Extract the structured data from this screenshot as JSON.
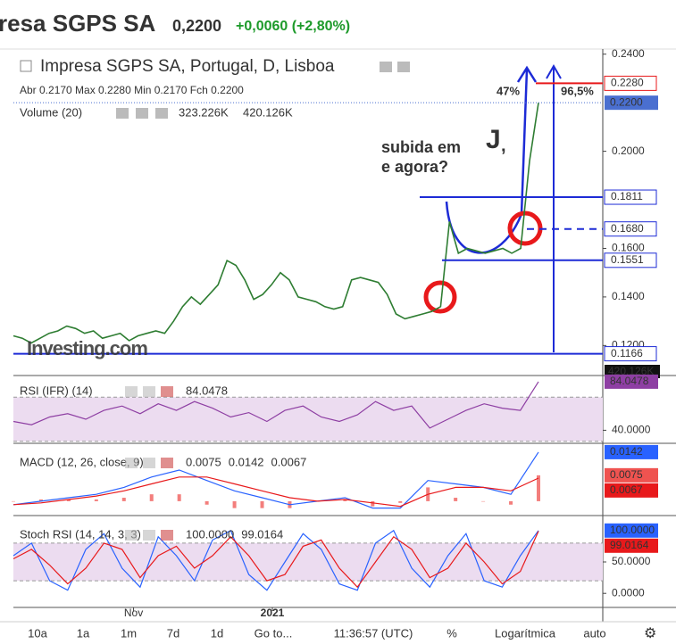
{
  "header": {
    "name": "resa SGPS SA",
    "price": "0,2200",
    "change": "+0,0060 (+2,80%)"
  },
  "chart_data": [
    {
      "type": "line",
      "title": "Impresa SGPS SA, Portugal, D, Lisboa",
      "ohlc": "Abr 0.2170 Max 0.2280 Min 0.2170 Fch 0.2200",
      "volume": {
        "label": "Volume (20)",
        "values": [
          "323.226K",
          "420.126K"
        ],
        "axis_label": "420.126K"
      },
      "watermark": "Investing.com",
      "color": "#2e7d32",
      "values": [
        0.124,
        0.123,
        0.121,
        0.123,
        0.125,
        0.126,
        0.128,
        0.127,
        0.125,
        0.126,
        0.123,
        0.124,
        0.125,
        0.122,
        0.124,
        0.125,
        0.126,
        0.125,
        0.13,
        0.136,
        0.14,
        0.137,
        0.141,
        0.145,
        0.155,
        0.153,
        0.147,
        0.139,
        0.141,
        0.145,
        0.15,
        0.147,
        0.14,
        0.139,
        0.138,
        0.136,
        0.135,
        0.136,
        0.147,
        0.148,
        0.147,
        0.146,
        0.141,
        0.133,
        0.131,
        0.132,
        0.133,
        0.134,
        0.136,
        0.171,
        0.158,
        0.16,
        0.159,
        0.158,
        0.159,
        0.16,
        0.158,
        0.16,
        0.196,
        0.22
      ],
      "value_labels": [
        null,
        null,
        null,
        null,
        null,
        null,
        null,
        null,
        null,
        null,
        null,
        null,
        null,
        null,
        null,
        null,
        null,
        null,
        null,
        null,
        null,
        null,
        null,
        null,
        null,
        null,
        null,
        null,
        null,
        null,
        null,
        null,
        null,
        null,
        null,
        null,
        null,
        null,
        null,
        null,
        null,
        null,
        null,
        null,
        null,
        null,
        null,
        null,
        null,
        null,
        null,
        null,
        null,
        null,
        null,
        null,
        null,
        null,
        null,
        "0.2200"
      ],
      "box_color": "#4a6fd0",
      "ylim": [
        0.108,
        0.241
      ],
      "yticks": [
        {
          "value": 0.24,
          "label": "0.2400"
        },
        {
          "value": 0.2,
          "label": "0.2000"
        },
        {
          "value": 0.16,
          "label": "0.1600"
        },
        {
          "value": 0.14,
          "label": "0.1400"
        },
        {
          "value": 0.12,
          "label": "0.1200"
        }
      ],
      "xticks": [
        {
          "value": 13.5,
          "label": "Nov"
        },
        {
          "value": 29.1,
          "label": "2021"
        }
      ],
      "levels": [
        {
          "value": 0.228,
          "label": "0.2280",
          "color": "#e8191b"
        },
        {
          "value": 0.1811,
          "color": "#1d2bd6"
        },
        {
          "value": 0.168,
          "label": "0.1680",
          "color": "#1d2bd6",
          "dashed": true
        },
        {
          "value": 0.1551,
          "color": "#1d2bd6"
        },
        {
          "value": 0.1166,
          "color": "#1d2bd6"
        }
      ],
      "annotations": [
        "subida em",
        "J",
        ",",
        "e agora?",
        "47%",
        "96,5%"
      ]
    },
    {
      "type": "line",
      "title": "RSI (IFR) (14)",
      "ylim": [
        29,
        88
      ],
      "yticks": [
        {
          "value": 40,
          "label": "40.0000"
        }
      ],
      "band": [
        30,
        70
      ],
      "series": [
        {
          "color": "#8e3fa3",
          "values": [
            48,
            45,
            52,
            55,
            50,
            58,
            62,
            55,
            64,
            58,
            66,
            60,
            52,
            56,
            48,
            58,
            62,
            52,
            48,
            54,
            66,
            58,
            62,
            42,
            50,
            58,
            64,
            60,
            58,
            84.0478
          ]
        }
      ]
    },
    {
      "type": "line",
      "title": "MACD (12, 26, close, 9)",
      "ylim": [
        -0.0039,
        0.0165
      ],
      "yticks": [],
      "histogram": {
        "color": "#ef5350",
        "values": [
          0,
          0.0005,
          0.0005,
          0.0005,
          0.001,
          0.002,
          0.002,
          -0.001,
          -0.002,
          -0.002,
          -0.002,
          0,
          0.0005,
          -0.0015,
          -0.0005,
          0.004,
          0.001,
          0,
          -0.001,
          0.0075
        ]
      },
      "series": [
        {
          "color": "#2962ff",
          "values": [
            -0.001,
            0.0,
            0.001,
            0.002,
            0.004,
            0.007,
            0.009,
            0.006,
            0.003,
            0.001,
            -0.001,
            0.0,
            0.001,
            -0.002,
            -0.002,
            0.006,
            0.005,
            0.004,
            0.002,
            0.0142
          ]
        },
        {
          "color": "#e8191b",
          "values": [
            -0.001,
            -0.0005,
            0.0005,
            0.0015,
            0.003,
            0.005,
            0.007,
            0.007,
            0.005,
            0.003,
            0.001,
            0.0,
            0.0005,
            -0.0005,
            -0.0015,
            0.002,
            0.004,
            0.004,
            0.003,
            0.0067
          ]
        }
      ]
    },
    {
      "type": "line",
      "title": "Stoch RSI (14, 14, 3, 3)",
      "ylim": [
        -21,
        121
      ],
      "yticks": [
        {
          "value": 50,
          "label": "50.0000"
        },
        {
          "value": 0,
          "label": "0.0000"
        }
      ],
      "band": [
        20,
        80
      ],
      "series": [
        {
          "color": "#2962ff",
          "values": [
            60,
            80,
            20,
            5,
            70,
            95,
            40,
            10,
            90,
            60,
            20,
            85,
            100,
            30,
            5,
            50,
            95,
            70,
            15,
            5,
            80,
            100,
            40,
            10,
            60,
            95,
            20,
            10,
            60,
            100
          ],
          "value_labels": [
            null,
            null,
            null,
            null,
            null,
            null,
            null,
            null,
            null,
            null,
            null,
            null,
            null,
            null,
            null,
            null,
            null,
            null,
            null,
            null,
            null,
            null,
            null,
            null,
            null,
            null,
            null,
            null,
            null,
            "100.0000"
          ]
        },
        {
          "color": "#e8191b",
          "values": [
            55,
            70,
            45,
            15,
            40,
            80,
            70,
            25,
            60,
            75,
            40,
            60,
            90,
            60,
            20,
            30,
            75,
            85,
            40,
            10,
            50,
            90,
            70,
            25,
            40,
            80,
            50,
            15,
            35,
            99.0164
          ]
        }
      ]
    }
  ],
  "toolbar": [
    "10a",
    "1a",
    "1m",
    "7d",
    "1d",
    "Go to...",
    "11:36:57 (UTC)",
    "%",
    "Logarítmica",
    "auto"
  ]
}
